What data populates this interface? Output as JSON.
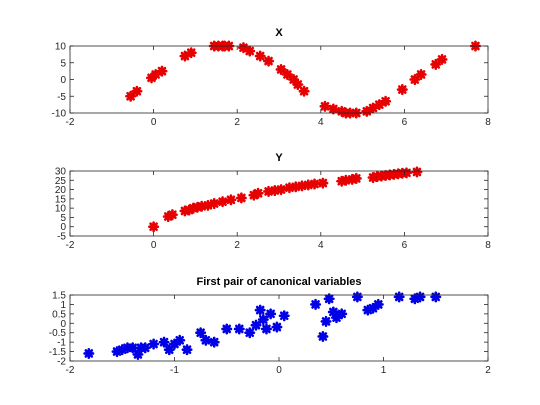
{
  "chart_data": [
    {
      "type": "scatter",
      "title": "X",
      "xlim": [
        -2,
        8
      ],
      "ylim": [
        -10,
        10
      ],
      "xticks": [
        "-2",
        "0",
        "2",
        "4",
        "6",
        "8"
      ],
      "yticks": [
        "-10",
        "-5",
        "0",
        "5",
        "10"
      ],
      "grid": false,
      "color": "#e60000",
      "marker": "asterisk",
      "x": [
        -0.55,
        -0.4,
        -0.05,
        0.05,
        0.2,
        0.75,
        0.9,
        1.45,
        1.55,
        1.65,
        1.7,
        1.8,
        2.15,
        2.3,
        2.55,
        2.75,
        3.05,
        3.2,
        3.35,
        3.45,
        3.6,
        4.1,
        4.3,
        4.5,
        4.6,
        4.7,
        4.85,
        5.1,
        5.25,
        5.4,
        5.55,
        5.95,
        6.25,
        6.4,
        6.75,
        6.9,
        7.7
      ],
      "y": [
        -5,
        -3.5,
        0.5,
        1.5,
        2.5,
        7.0,
        8.0,
        10.0,
        10.0,
        10.0,
        10.0,
        10.0,
        9.5,
        8.5,
        7.0,
        5.5,
        3.0,
        1.5,
        0.0,
        -1.5,
        -3.5,
        -8.0,
        -8.8,
        -9.5,
        -10.0,
        -10.0,
        -10.0,
        -9.5,
        -8.5,
        -7.5,
        -6.5,
        -3.0,
        0.0,
        1.5,
        4.5,
        6.0,
        10.0
      ]
    },
    {
      "type": "scatter",
      "title": "Y",
      "xlim": [
        -2,
        8
      ],
      "ylim": [
        -5,
        30
      ],
      "xticks": [
        "-2",
        "0",
        "2",
        "4",
        "6",
        "8"
      ],
      "yticks": [
        "-5",
        "0",
        "5",
        "10",
        "15",
        "20",
        "25",
        "30"
      ],
      "grid": false,
      "color": "#e60000",
      "marker": "asterisk",
      "x": [
        0.0,
        0.35,
        0.45,
        0.75,
        0.85,
        0.95,
        1.05,
        1.15,
        1.3,
        1.45,
        1.65,
        1.85,
        2.1,
        2.4,
        2.5,
        2.75,
        2.9,
        3.05,
        3.25,
        3.4,
        3.55,
        3.7,
        3.85,
        4.05,
        4.5,
        4.6,
        4.75,
        4.85,
        5.25,
        5.35,
        5.45,
        5.55,
        5.65,
        5.75,
        5.85,
        5.95,
        6.05,
        6.3
      ],
      "y": [
        0.0,
        5.5,
        6.5,
        8.5,
        9.0,
        10.0,
        10.5,
        11.0,
        11.5,
        12.5,
        13.5,
        14.5,
        15.5,
        17.0,
        18.0,
        19.0,
        19.5,
        20.0,
        21.0,
        21.5,
        22.0,
        22.5,
        23.0,
        23.5,
        24.5,
        25.0,
        25.5,
        26.0,
        26.5,
        27.0,
        27.3,
        27.6,
        27.9,
        28.2,
        28.5,
        28.8,
        29.0,
        29.5
      ]
    },
    {
      "type": "scatter",
      "title": "First pair of canonical variables",
      "xlim": [
        -2,
        2
      ],
      "ylim": [
        -2,
        1.5
      ],
      "xticks": [
        "-2",
        "-1",
        "0",
        "1",
        "2"
      ],
      "yticks": [
        "-2",
        "-1.5",
        "-1",
        "-0.5",
        "0",
        "0.5",
        "1",
        "1.5"
      ],
      "grid": false,
      "color": "#0000e6",
      "marker": "asterisk",
      "x": [
        -1.82,
        -1.55,
        -1.5,
        -1.45,
        -1.4,
        -1.35,
        -1.32,
        -1.28,
        -1.2,
        -1.1,
        -1.05,
        -1.0,
        -0.95,
        -0.88,
        -0.75,
        -0.7,
        -0.62,
        -0.5,
        -0.38,
        -0.28,
        -0.22,
        -0.18,
        -0.15,
        -0.12,
        -0.08,
        -0.02,
        0.05,
        0.35,
        0.42,
        0.45,
        0.48,
        0.52,
        0.55,
        0.6,
        0.75,
        0.85,
        0.9,
        0.95,
        1.15,
        1.3,
        1.35,
        1.5
      ],
      "y": [
        -1.6,
        -1.5,
        -1.4,
        -1.3,
        -1.3,
        -1.65,
        -1.3,
        -1.3,
        -1.1,
        -1.0,
        -1.4,
        -1.1,
        -0.9,
        -1.4,
        -0.5,
        -0.9,
        -1.0,
        -0.3,
        -0.3,
        -0.5,
        -0.1,
        0.7,
        0.2,
        -0.3,
        0.5,
        -0.2,
        0.4,
        1.0,
        -0.7,
        0.1,
        1.3,
        0.6,
        0.3,
        0.5,
        1.4,
        0.7,
        0.8,
        1.0,
        1.4,
        1.3,
        1.4,
        1.4
      ]
    }
  ]
}
